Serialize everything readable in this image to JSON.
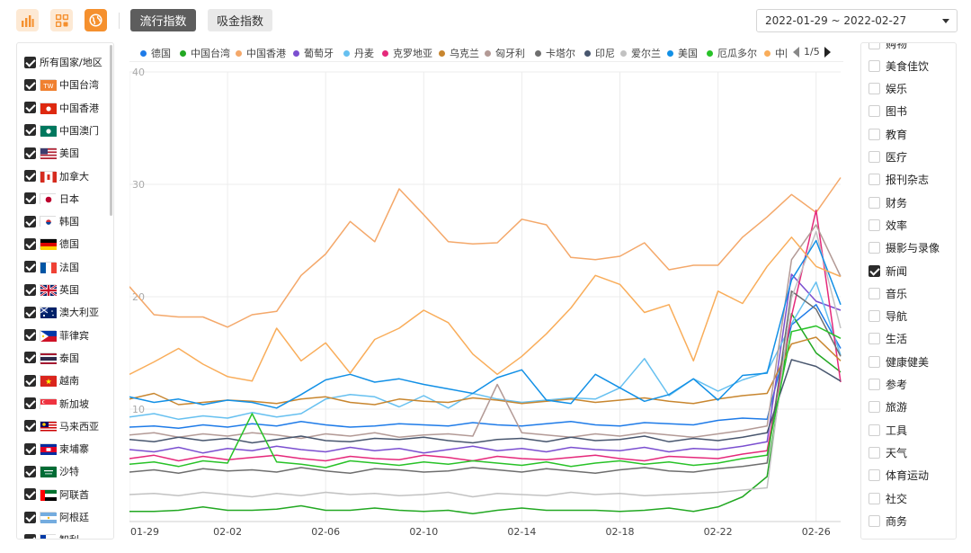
{
  "toolbar": {
    "icons": [
      "bar-chart-icon",
      "grid-icon",
      "globe-icon"
    ],
    "tabs": [
      {
        "label": "流行指数",
        "active": true
      },
      {
        "label": "吸金指数",
        "active": false
      }
    ],
    "date_range": "2022-01-29 ~ 2022-02-27"
  },
  "countries": [
    {
      "label": "所有国家/地区",
      "checked": true,
      "flag": "none"
    },
    {
      "label": "中国台湾",
      "checked": true,
      "flag": "tw"
    },
    {
      "label": "中国香港",
      "checked": true,
      "flag": "hk"
    },
    {
      "label": "中国澳门",
      "checked": true,
      "flag": "mo"
    },
    {
      "label": "美国",
      "checked": true,
      "flag": "us"
    },
    {
      "label": "加拿大",
      "checked": true,
      "flag": "ca"
    },
    {
      "label": "日本",
      "checked": true,
      "flag": "jp"
    },
    {
      "label": "韩国",
      "checked": true,
      "flag": "kr"
    },
    {
      "label": "德国",
      "checked": true,
      "flag": "de"
    },
    {
      "label": "法国",
      "checked": true,
      "flag": "fr"
    },
    {
      "label": "英国",
      "checked": true,
      "flag": "gb"
    },
    {
      "label": "澳大利亚",
      "checked": true,
      "flag": "au"
    },
    {
      "label": "菲律宾",
      "checked": true,
      "flag": "ph"
    },
    {
      "label": "泰国",
      "checked": true,
      "flag": "th"
    },
    {
      "label": "越南",
      "checked": true,
      "flag": "vn"
    },
    {
      "label": "新加坡",
      "checked": true,
      "flag": "sg"
    },
    {
      "label": "马来西亚",
      "checked": true,
      "flag": "my"
    },
    {
      "label": "柬埔寨",
      "checked": true,
      "flag": "kh"
    },
    {
      "label": "沙特",
      "checked": true,
      "flag": "sa"
    },
    {
      "label": "阿联酋",
      "checked": true,
      "flag": "ae"
    },
    {
      "label": "阿根廷",
      "checked": true,
      "flag": "ar"
    },
    {
      "label": "智利",
      "checked": true,
      "flag": "cl"
    }
  ],
  "categories_panel": [
    {
      "label": "购物",
      "checked": false
    },
    {
      "label": "美食佳饮",
      "checked": false
    },
    {
      "label": "娱乐",
      "checked": false
    },
    {
      "label": "图书",
      "checked": false
    },
    {
      "label": "教育",
      "checked": false
    },
    {
      "label": "医疗",
      "checked": false
    },
    {
      "label": "报刊杂志",
      "checked": false
    },
    {
      "label": "财务",
      "checked": false
    },
    {
      "label": "效率",
      "checked": false
    },
    {
      "label": "摄影与录像",
      "checked": false
    },
    {
      "label": "新闻",
      "checked": true
    },
    {
      "label": "音乐",
      "checked": false
    },
    {
      "label": "导航",
      "checked": false
    },
    {
      "label": "生活",
      "checked": false
    },
    {
      "label": "健康健美",
      "checked": false
    },
    {
      "label": "参考",
      "checked": false
    },
    {
      "label": "旅游",
      "checked": false
    },
    {
      "label": "工具",
      "checked": false
    },
    {
      "label": "天气",
      "checked": false
    },
    {
      "label": "体育运动",
      "checked": false
    },
    {
      "label": "社交",
      "checked": false
    },
    {
      "label": "商务",
      "checked": false
    }
  ],
  "legend_page": "1/5",
  "colors": {
    "accent": "#f5902e",
    "grid": "#ececec"
  },
  "chart_data": {
    "type": "line",
    "x": [
      "01-29",
      "01-30",
      "01-31",
      "02-01",
      "02-02",
      "02-03",
      "02-04",
      "02-05",
      "02-06",
      "02-07",
      "02-08",
      "02-09",
      "02-10",
      "02-11",
      "02-12",
      "02-13",
      "02-14",
      "02-15",
      "02-16",
      "02-17",
      "02-18",
      "02-19",
      "02-20",
      "02-21",
      "02-22",
      "02-23",
      "02-24",
      "02-25",
      "02-26",
      "02-27"
    ],
    "xticks": [
      "01-29",
      "02-02",
      "02-06",
      "02-10",
      "02-14",
      "02-18",
      "02-22",
      "02-26"
    ],
    "yticks": [
      10,
      20,
      30,
      40
    ],
    "ylim": [
      0,
      40
    ],
    "grid": true,
    "legend_position": "top",
    "series": [
      {
        "name": "德国",
        "color": "#1e7be8",
        "values": [
          8.4,
          8.5,
          8.3,
          8.6,
          8.4,
          8.7,
          8.5,
          8.9,
          8.6,
          8.4,
          8.5,
          8.7,
          8.6,
          8.5,
          8.8,
          8.6,
          8.5,
          8.7,
          8.9,
          8.6,
          8.5,
          8.8,
          8.7,
          8.6,
          9.0,
          9.2,
          9.1,
          17.5,
          19.3,
          15.4
        ]
      },
      {
        "name": "中国台湾",
        "color": "#22a822",
        "values": [
          0.9,
          0.9,
          1.0,
          1.3,
          1.0,
          1.0,
          1.1,
          1.4,
          1.0,
          1.0,
          1.2,
          1.0,
          0.9,
          1.0,
          0.7,
          1.0,
          1.2,
          1.0,
          1.0,
          1.0,
          0.9,
          1.0,
          1.2,
          0.9,
          1.3,
          2.2,
          4.0,
          18.5,
          15.0,
          13.3
        ]
      },
      {
        "name": "中国香港",
        "color": "#f4a86a",
        "values": [
          20.9,
          18.4,
          18.2,
          18.2,
          17.3,
          18.4,
          18.7,
          21.9,
          23.8,
          26.7,
          24.9,
          29.6,
          27.3,
          24.9,
          24.7,
          24.8,
          26.9,
          26.4,
          23.5,
          23.3,
          23.6,
          24.8,
          22.4,
          22.8,
          22.8,
          25.3,
          27.1,
          29.1,
          27.5,
          30.6
        ]
      },
      {
        "name": "葡萄牙",
        "color": "#7b4fd0",
        "values": [
          6.4,
          6.2,
          6.6,
          6.1,
          6.5,
          6.3,
          6.7,
          6.4,
          6.2,
          6.6,
          6.3,
          6.5,
          6.1,
          6.4,
          6.7,
          6.3,
          6.5,
          6.2,
          6.6,
          6.4,
          6.3,
          6.6,
          6.2,
          6.5,
          6.4,
          6.7,
          7.1,
          22.0,
          19.6,
          18.8
        ]
      },
      {
        "name": "丹麦",
        "color": "#66c0f0",
        "values": [
          9.3,
          9.6,
          9.1,
          9.4,
          9.2,
          9.7,
          9.3,
          9.6,
          10.9,
          11.3,
          11.1,
          10.2,
          11.2,
          10.1,
          11.4,
          10.9,
          10.6,
          10.8,
          11.0,
          10.9,
          11.9,
          14.5,
          11.2,
          12.7,
          11.6,
          12.6,
          13.3,
          17.6,
          21.3,
          14.8
        ]
      },
      {
        "name": "克罗地亚",
        "color": "#e5297b",
        "values": [
          5.6,
          5.9,
          5.4,
          5.8,
          5.5,
          5.7,
          5.9,
          5.6,
          5.4,
          5.8,
          5.6,
          5.5,
          5.9,
          5.7,
          5.4,
          5.8,
          5.6,
          5.5,
          5.7,
          5.9,
          5.6,
          5.4,
          5.8,
          5.7,
          5.6,
          6.0,
          6.3,
          18.3,
          27.7,
          12.4
        ]
      },
      {
        "name": "乌克兰",
        "color": "#c8862f",
        "values": [
          10.9,
          11.4,
          10.4,
          10.6,
          10.8,
          10.7,
          10.5,
          10.9,
          11.1,
          10.6,
          10.4,
          10.9,
          10.7,
          10.6,
          11.0,
          10.8,
          10.5,
          10.7,
          10.9,
          10.6,
          10.8,
          11.0,
          10.7,
          10.5,
          10.9,
          11.2,
          11.4,
          15.8,
          16.4,
          14.3
        ]
      },
      {
        "name": "匈牙利",
        "color": "#b39a96",
        "values": [
          7.7,
          7.9,
          7.5,
          7.8,
          7.6,
          7.9,
          7.7,
          7.4,
          7.8,
          7.6,
          7.9,
          7.5,
          7.7,
          7.8,
          7.6,
          12.2,
          7.9,
          7.7,
          7.5,
          7.8,
          7.6,
          7.9,
          7.7,
          7.5,
          7.8,
          8.1,
          8.5,
          23.3,
          26.4,
          21.8
        ]
      },
      {
        "name": "卡塔尔",
        "color": "#6e6e6e",
        "values": [
          4.4,
          4.6,
          4.3,
          4.7,
          4.5,
          4.6,
          4.4,
          4.8,
          4.5,
          4.3,
          4.7,
          4.6,
          4.4,
          4.5,
          4.8,
          4.6,
          4.4,
          4.7,
          4.5,
          4.3,
          4.6,
          4.8,
          4.5,
          4.4,
          4.7,
          4.9,
          5.2,
          20.5,
          18.9,
          14.7
        ]
      },
      {
        "name": "印尼",
        "color": "#48566e",
        "values": [
          7.3,
          7.1,
          7.5,
          7.2,
          7.4,
          7.0,
          7.3,
          7.6,
          7.2,
          7.1,
          7.4,
          7.3,
          7.5,
          7.2,
          7.0,
          7.3,
          7.4,
          7.1,
          7.5,
          7.2,
          7.3,
          7.6,
          7.1,
          7.4,
          7.2,
          7.5,
          7.9,
          14.4,
          13.8,
          12.5
        ]
      },
      {
        "name": "爱尔兰",
        "color": "#c2c2c2",
        "values": [
          2.4,
          2.5,
          2.3,
          2.6,
          2.4,
          2.2,
          2.5,
          2.3,
          2.6,
          2.4,
          2.5,
          2.3,
          2.4,
          2.6,
          2.2,
          2.5,
          2.4,
          2.3,
          2.6,
          2.4,
          2.5,
          2.3,
          2.4,
          2.5,
          2.6,
          2.8,
          3.0,
          19.9,
          25.8,
          17.2
        ]
      },
      {
        "name": "美国",
        "color": "#1290e6",
        "values": [
          11.1,
          10.6,
          10.9,
          10.4,
          10.8,
          10.6,
          10.1,
          11.3,
          12.6,
          13.1,
          12.4,
          12.7,
          12.2,
          11.8,
          11.4,
          12.8,
          13.5,
          10.8,
          10.5,
          13.1,
          11.9,
          10.7,
          11.3,
          12.7,
          10.8,
          13.0,
          13.2,
          21.5,
          25.0,
          19.3
        ]
      },
      {
        "name": "厄瓜多尔",
        "color": "#28c228",
        "values": [
          5.1,
          5.3,
          4.9,
          5.4,
          5.2,
          9.6,
          5.3,
          5.1,
          4.8,
          5.4,
          5.2,
          5.0,
          5.3,
          5.1,
          5.4,
          5.2,
          5.0,
          5.3,
          4.9,
          5.2,
          5.4,
          5.1,
          5.3,
          5.0,
          5.2,
          5.6,
          5.9,
          16.9,
          17.4,
          16.3
        ]
      },
      {
        "name": "中国",
        "color": "#f9ad5a",
        "values": [
          13.1,
          14.2,
          15.4,
          14.0,
          12.9,
          12.5,
          17.2,
          14.3,
          15.9,
          13.2,
          16.2,
          17.2,
          18.8,
          17.7,
          14.9,
          13.1,
          14.7,
          16.7,
          19.0,
          21.9,
          21.1,
          18.6,
          19.3,
          14.3,
          20.5,
          19.4,
          22.7,
          25.3,
          22.7,
          21.8
        ]
      }
    ]
  }
}
